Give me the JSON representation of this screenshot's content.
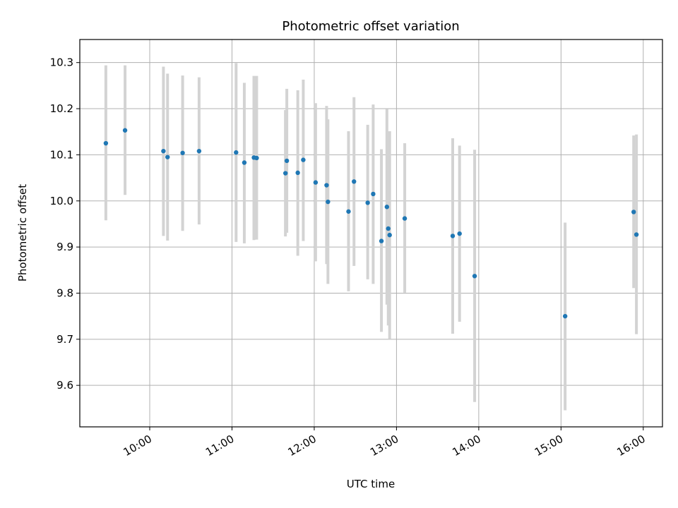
{
  "chart_data": {
    "type": "scatter",
    "title": "Photometric offset variation",
    "xlabel": "UTC time",
    "ylabel": "Photometric offset",
    "xlim": [
      "09:09",
      "16:14"
    ],
    "ylim": [
      9.51,
      10.35
    ],
    "x_ticks": [
      "10:00",
      "11:00",
      "12:00",
      "13:00",
      "14:00",
      "15:00",
      "16:00"
    ],
    "y_ticks": [
      "9.6",
      "9.7",
      "9.8",
      "9.9",
      "10.0",
      "10.1",
      "10.2",
      "10.3"
    ],
    "grid": true,
    "colors": {
      "points": "#1f77b4",
      "error_bars": "#d3d3d3",
      "grid": "#b0b0b0"
    },
    "series": [
      {
        "points": [
          {
            "x": "09:28",
            "y": 10.125,
            "y_low": 9.958,
            "y_high": 10.294
          },
          {
            "x": "09:42",
            "y": 10.153,
            "y_low": 10.013,
            "y_high": 10.294
          },
          {
            "x": "10:10",
            "y": 10.108,
            "y_low": 9.924,
            "y_high": 10.291
          },
          {
            "x": "10:13",
            "y": 10.095,
            "y_low": 9.914,
            "y_high": 10.276
          },
          {
            "x": "10:24",
            "y": 10.104,
            "y_low": 9.935,
            "y_high": 10.272
          },
          {
            "x": "10:36",
            "y": 10.108,
            "y_low": 9.949,
            "y_high": 10.268
          },
          {
            "x": "11:03",
            "y": 10.105,
            "y_low": 9.911,
            "y_high": 10.299
          },
          {
            "x": "11:09",
            "y": 10.083,
            "y_low": 9.908,
            "y_high": 10.256
          },
          {
            "x": "11:16",
            "y": 10.094,
            "y_low": 9.915,
            "y_high": 10.271
          },
          {
            "x": "11:18",
            "y": 10.093,
            "y_low": 9.916,
            "y_high": 10.271
          },
          {
            "x": "11:39",
            "y": 10.06,
            "y_low": 9.923,
            "y_high": 10.197
          },
          {
            "x": "11:40",
            "y": 10.087,
            "y_low": 9.931,
            "y_high": 10.243
          },
          {
            "x": "11:48",
            "y": 10.061,
            "y_low": 9.881,
            "y_high": 10.24
          },
          {
            "x": "11:52",
            "y": 10.089,
            "y_low": 9.913,
            "y_high": 10.263
          },
          {
            "x": "12:01",
            "y": 10.04,
            "y_low": 9.869,
            "y_high": 10.212
          },
          {
            "x": "12:09",
            "y": 10.034,
            "y_low": 9.863,
            "y_high": 10.206
          },
          {
            "x": "12:10",
            "y": 9.998,
            "y_low": 9.82,
            "y_high": 10.177
          },
          {
            "x": "12:25",
            "y": 9.977,
            "y_low": 9.804,
            "y_high": 10.151
          },
          {
            "x": "12:29",
            "y": 10.042,
            "y_low": 9.859,
            "y_high": 10.225
          },
          {
            "x": "12:39",
            "y": 9.996,
            "y_low": 9.83,
            "y_high": 10.165
          },
          {
            "x": "12:43",
            "y": 10.015,
            "y_low": 9.82,
            "y_high": 10.209
          },
          {
            "x": "12:49",
            "y": 9.913,
            "y_low": 9.716,
            "y_high": 10.112
          },
          {
            "x": "12:53",
            "y": 9.987,
            "y_low": 9.775,
            "y_high": 10.199
          },
          {
            "x": "12:54",
            "y": 9.94,
            "y_low": 9.73,
            "y_high": 10.151
          },
          {
            "x": "12:55",
            "y": 9.926,
            "y_low": 9.701,
            "y_high": 10.151
          },
          {
            "x": "13:06",
            "y": 9.962,
            "y_low": 9.801,
            "y_high": 10.125
          },
          {
            "x": "13:41",
            "y": 9.924,
            "y_low": 9.712,
            "y_high": 10.136
          },
          {
            "x": "13:46",
            "y": 9.929,
            "y_low": 9.738,
            "y_high": 10.12
          },
          {
            "x": "13:57",
            "y": 9.837,
            "y_low": 9.564,
            "y_high": 10.111
          },
          {
            "x": "15:03",
            "y": 9.75,
            "y_low": 9.546,
            "y_high": 9.953
          },
          {
            "x": "15:53",
            "y": 9.976,
            "y_low": 9.811,
            "y_high": 10.142
          },
          {
            "x": "15:55",
            "y": 9.927,
            "y_low": 9.711,
            "y_high": 10.144
          }
        ]
      }
    ]
  }
}
